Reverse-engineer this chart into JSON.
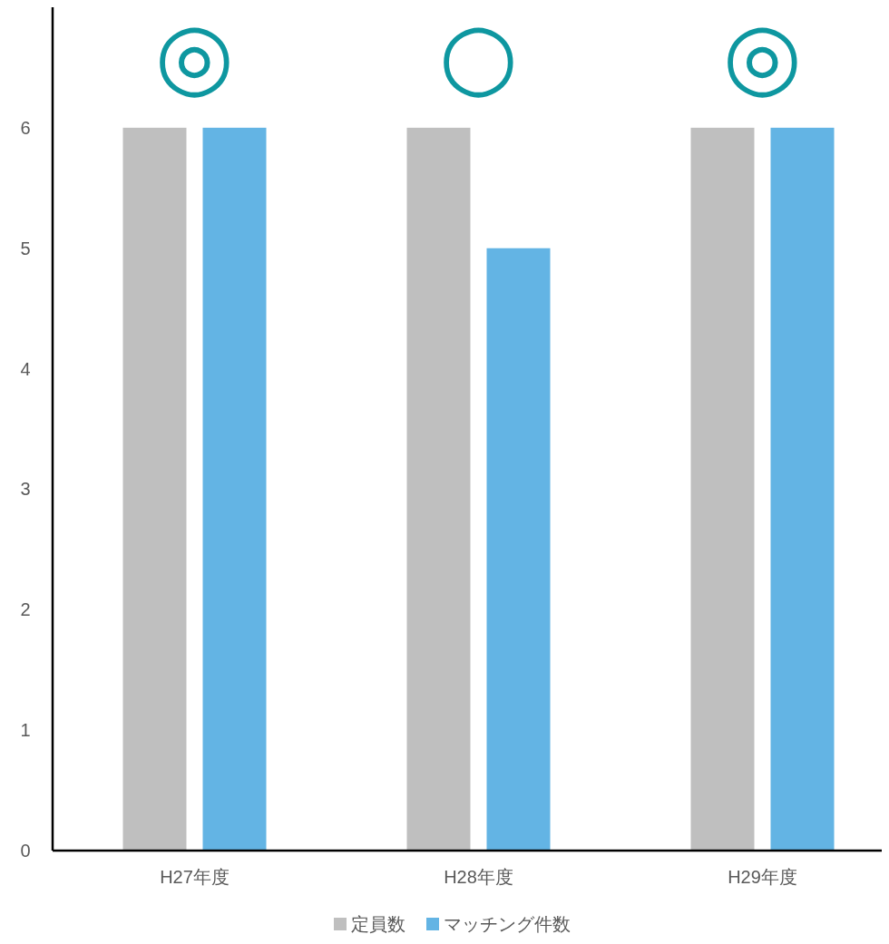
{
  "chart_data": {
    "type": "bar",
    "categories": [
      "H27年度",
      "H28年度",
      "H29年度"
    ],
    "series": [
      {
        "name": "定員数",
        "color": "#bfbfbf",
        "values": [
          6,
          6,
          6
        ]
      },
      {
        "name": "マッチング件数",
        "color": "#63b4e4",
        "values": [
          6,
          5,
          6
        ]
      }
    ],
    "ylim": [
      0,
      7
    ],
    "yticks": [
      0,
      1,
      2,
      3,
      4,
      5,
      6
    ],
    "grid": false,
    "legend": "bottom",
    "annotations": [
      "◎",
      "○",
      "◎"
    ]
  }
}
